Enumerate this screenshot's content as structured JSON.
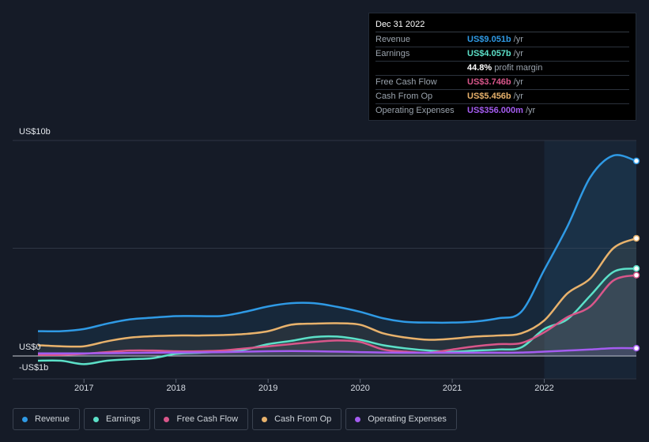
{
  "tooltip": {
    "date": "Dec 31 2022",
    "rows": [
      {
        "label": "Revenue",
        "value": "US$9.051b",
        "unit": "/yr",
        "color": "#2f9ae5"
      },
      {
        "label": "Earnings",
        "value": "US$4.057b",
        "unit": "/yr",
        "color": "#5ce0c8"
      },
      {
        "label": "",
        "value": "44.8%",
        "unit": "profit margin",
        "color": "#ffffff"
      },
      {
        "label": "Free Cash Flow",
        "value": "US$3.746b",
        "unit": "/yr",
        "color": "#d9568a"
      },
      {
        "label": "Cash From Op",
        "value": "US$5.456b",
        "unit": "/yr",
        "color": "#e8b26c"
      },
      {
        "label": "Operating Expenses",
        "value": "US$356.000m",
        "unit": "/yr",
        "color": "#a45cf0"
      }
    ]
  },
  "legend": [
    {
      "label": "Revenue",
      "color": "#2f9ae5"
    },
    {
      "label": "Earnings",
      "color": "#5ce0c8"
    },
    {
      "label": "Free Cash Flow",
      "color": "#d9568a"
    },
    {
      "label": "Cash From Op",
      "color": "#e8b26c"
    },
    {
      "label": "Operating Expenses",
      "color": "#a45cf0"
    }
  ],
  "chart_data": {
    "type": "area",
    "y_top_label": "US$10b",
    "y_zero_label": "US$0",
    "y_neg_label": "-US$1b",
    "ylim": [
      -1,
      10
    ],
    "x_tick_labels": [
      "2017",
      "2018",
      "2019",
      "2020",
      "2021",
      "2022"
    ],
    "x_tick_values": [
      2017,
      2018,
      2019,
      2020,
      2021,
      2022
    ],
    "x_range": [
      2016.5,
      2023.0
    ],
    "highlight_from": 2022.0,
    "series": [
      {
        "name": "Revenue",
        "color": "#2f9ae5",
        "x": [
          2016.5,
          2016.75,
          2017.0,
          2017.25,
          2017.5,
          2017.75,
          2018.0,
          2018.25,
          2018.5,
          2018.75,
          2019.0,
          2019.25,
          2019.5,
          2019.75,
          2020.0,
          2020.25,
          2020.5,
          2020.75,
          2021.0,
          2021.25,
          2021.5,
          2021.75,
          2022.0,
          2022.25,
          2022.5,
          2022.75,
          2023.0
        ],
        "y": [
          1.15,
          1.15,
          1.25,
          1.5,
          1.7,
          1.78,
          1.85,
          1.85,
          1.86,
          2.05,
          2.3,
          2.45,
          2.45,
          2.28,
          2.05,
          1.75,
          1.58,
          1.55,
          1.55,
          1.6,
          1.75,
          2.05,
          4.0,
          6.0,
          8.3,
          9.3,
          9.05
        ]
      },
      {
        "name": "Cash From Op",
        "color": "#e8b26c",
        "x": [
          2016.5,
          2016.75,
          2017.0,
          2017.25,
          2017.5,
          2017.75,
          2018.0,
          2018.25,
          2018.5,
          2018.75,
          2019.0,
          2019.25,
          2019.5,
          2019.75,
          2020.0,
          2020.25,
          2020.5,
          2020.75,
          2021.0,
          2021.25,
          2021.5,
          2021.75,
          2022.0,
          2022.25,
          2022.5,
          2022.75,
          2023.0
        ],
        "y": [
          0.5,
          0.45,
          0.45,
          0.68,
          0.85,
          0.92,
          0.95,
          0.95,
          0.97,
          1.02,
          1.15,
          1.45,
          1.5,
          1.52,
          1.45,
          1.05,
          0.85,
          0.75,
          0.8,
          0.9,
          0.95,
          1.05,
          1.65,
          2.9,
          3.6,
          5.0,
          5.46
        ]
      },
      {
        "name": "Earnings",
        "color": "#5ce0c8",
        "x": [
          2016.5,
          2016.75,
          2017.0,
          2017.25,
          2017.5,
          2017.75,
          2018.0,
          2018.25,
          2018.5,
          2018.75,
          2019.0,
          2019.25,
          2019.5,
          2019.75,
          2020.0,
          2020.25,
          2020.5,
          2020.75,
          2021.0,
          2021.25,
          2021.5,
          2021.75,
          2022.0,
          2022.25,
          2022.5,
          2022.75,
          2023.0
        ],
        "y": [
          -0.22,
          -0.22,
          -0.38,
          -0.22,
          -0.15,
          -0.1,
          0.1,
          0.15,
          0.2,
          0.3,
          0.55,
          0.7,
          0.88,
          0.9,
          0.75,
          0.5,
          0.35,
          0.25,
          0.2,
          0.25,
          0.3,
          0.4,
          1.25,
          1.7,
          2.8,
          3.9,
          4.06
        ]
      },
      {
        "name": "Free Cash Flow",
        "color": "#d9568a",
        "x": [
          2016.5,
          2016.75,
          2017.0,
          2017.25,
          2017.5,
          2017.75,
          2018.0,
          2018.25,
          2018.5,
          2018.75,
          2019.0,
          2019.25,
          2019.5,
          2019.75,
          2020.0,
          2020.25,
          2020.5,
          2020.75,
          2021.0,
          2021.25,
          2021.5,
          2021.75,
          2022.0,
          2022.25,
          2022.5,
          2022.75,
          2023.0
        ],
        "y": [
          0.05,
          0.05,
          0.1,
          0.18,
          0.25,
          0.25,
          0.22,
          0.22,
          0.25,
          0.35,
          0.45,
          0.55,
          0.65,
          0.72,
          0.65,
          0.3,
          0.2,
          0.15,
          0.3,
          0.45,
          0.55,
          0.6,
          1.1,
          1.8,
          2.3,
          3.5,
          3.75
        ]
      },
      {
        "name": "Operating Expenses",
        "color": "#a45cf0",
        "x": [
          2016.5,
          2016.75,
          2017.0,
          2017.25,
          2017.5,
          2017.75,
          2018.0,
          2018.25,
          2018.5,
          2018.75,
          2019.0,
          2019.25,
          2019.5,
          2019.75,
          2020.0,
          2020.25,
          2020.5,
          2020.75,
          2021.0,
          2021.25,
          2021.5,
          2021.75,
          2022.0,
          2022.25,
          2022.5,
          2022.75,
          2023.0
        ],
        "y": [
          0.12,
          0.12,
          0.12,
          0.13,
          0.14,
          0.15,
          0.16,
          0.17,
          0.18,
          0.2,
          0.22,
          0.23,
          0.22,
          0.2,
          0.18,
          0.16,
          0.15,
          0.15,
          0.15,
          0.15,
          0.15,
          0.16,
          0.2,
          0.25,
          0.3,
          0.36,
          0.36
        ]
      }
    ]
  }
}
